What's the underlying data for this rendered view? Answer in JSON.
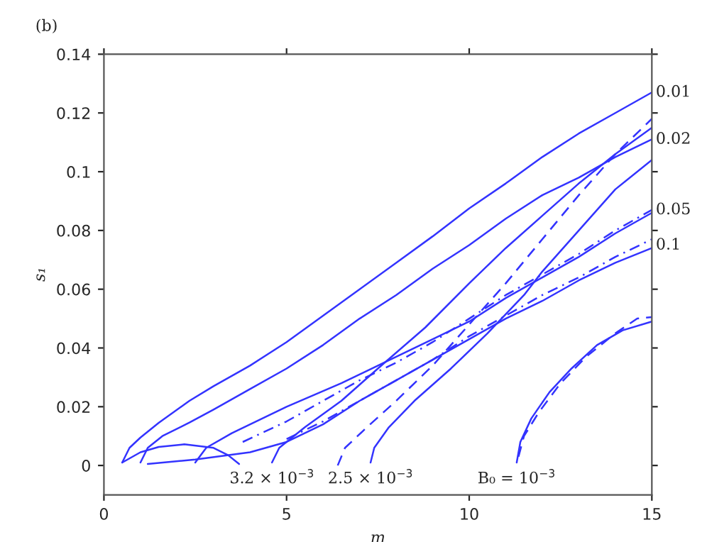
{
  "chart_data": {
    "type": "line",
    "xlabel": "m",
    "ylabel": "s₁",
    "xlim": [
      0,
      15
    ],
    "ylim": [
      -0.01,
      0.14
    ],
    "xticks": [
      0,
      5,
      10,
      15
    ],
    "yticks": [
      0,
      0.02,
      0.04,
      0.06,
      0.08,
      0.1,
      0.12,
      0.14
    ],
    "grid": false,
    "legend": false,
    "marker": "none",
    "annotations": [
      "(b)",
      {
        "text": "3.2 × 10$^{−3}$",
        "x": 4.6,
        "y": 0
      },
      {
        "text": "2.5 × 10$^{−3}$",
        "x": 7.3,
        "y": 0
      },
      {
        "text": "B₀ = 10$^{−3}$",
        "x": 11.3,
        "y": 0
      },
      {
        "text": "0.01",
        "x": 15,
        "y": 0.127
      },
      {
        "text": "0.02",
        "x": 15,
        "y": 0.111
      },
      {
        "text": "0.05",
        "x": 15,
        "y": 0.087
      },
      {
        "text": "0.1",
        "x": 15,
        "y": 0.075
      }
    ],
    "series": [
      {
        "color": "#3333ff",
        "line_style": "solid",
        "x": [
          0.5,
          0.7,
          1,
          1.5,
          2.34,
          3,
          4,
          5,
          6,
          7,
          8,
          9,
          10,
          11,
          12,
          13,
          14,
          15
        ],
        "values": [
          0.001,
          0.006,
          0.0095,
          0.0145,
          0.022,
          0.027,
          0.034,
          0.042,
          0.051,
          0.06,
          0.069,
          0.078,
          0.0875,
          0.096,
          0.105,
          0.113,
          0.12,
          0.127
        ]
      },
      {
        "color": "#3333ff",
        "line_style": "solid",
        "x": [
          1,
          1.2,
          1.6,
          2.34,
          3,
          4,
          5,
          6,
          7,
          8,
          9,
          10,
          11,
          12,
          13,
          14,
          15
        ],
        "values": [
          0.001,
          0.006,
          0.01,
          0.0146,
          0.019,
          0.026,
          0.033,
          0.041,
          0.05,
          0.058,
          0.067,
          0.075,
          0.084,
          0.092,
          0.098,
          0.105,
          0.111
        ]
      },
      {
        "color": "#3333ff",
        "line_style": "solid",
        "x": [
          4.6,
          4.8,
          5.5,
          6.5,
          7.5,
          8.8,
          10,
          11,
          12,
          13,
          14,
          15
        ],
        "values": [
          0.001,
          0.006,
          0.013,
          0.022,
          0.033,
          0.047,
          0.062,
          0.074,
          0.085,
          0.096,
          0.106,
          0.115
        ]
      },
      {
        "color": "#3333ff",
        "line_style": "dashed",
        "x": [
          6.4,
          6.6,
          7.2,
          8,
          9,
          10,
          11,
          12,
          13,
          14,
          15
        ],
        "values": [
          0.0,
          0.006,
          0.013,
          0.022,
          0.034,
          0.048,
          0.062,
          0.077,
          0.092,
          0.106,
          0.118
        ]
      },
      {
        "color": "#3333ff",
        "line_style": "solid",
        "x": [
          7.3,
          7.4,
          7.8,
          8.5,
          9.5,
          10.5,
          11.5,
          12,
          13,
          14,
          15
        ],
        "values": [
          0.001,
          0.006,
          0.013,
          0.022,
          0.033,
          0.045,
          0.058,
          0.066,
          0.08,
          0.094,
          0.104
        ]
      },
      {
        "color": "#3333ff",
        "line_style": "solid",
        "x": [
          0.5,
          1,
          1.5,
          2.2,
          3,
          3.4,
          3.7
        ],
        "values": [
          0.001,
          0.0045,
          0.0063,
          0.0072,
          0.006,
          0.0035,
          0.0005
        ]
      },
      {
        "color": "#3333ff",
        "line_style": "solid",
        "x": [
          1.2,
          2.5,
          4,
          5,
          6,
          7,
          8,
          9,
          10,
          11,
          12,
          13,
          14,
          15
        ],
        "values": [
          0.0005,
          0.002,
          0.0045,
          0.008,
          0.014,
          0.022,
          0.029,
          0.036,
          0.043,
          0.05,
          0.056,
          0.063,
          0.069,
          0.074
        ]
      },
      {
        "color": "#3333ff",
        "line_style": "solid",
        "x": [
          2.5,
          2.8,
          3.5,
          5,
          6.5,
          7.5,
          9,
          10,
          11,
          12,
          13,
          14,
          15
        ],
        "values": [
          0.001,
          0.006,
          0.011,
          0.02,
          0.028,
          0.034,
          0.043,
          0.049,
          0.057,
          0.064,
          0.071,
          0.079,
          0.086
        ]
      },
      {
        "color": "#3333ff",
        "line_style": "dashdot",
        "x": [
          3.8,
          5,
          6,
          7,
          8,
          9,
          10,
          11,
          12,
          13,
          14,
          15
        ],
        "values": [
          0.008,
          0.015,
          0.022,
          0.029,
          0.035,
          0.042,
          0.05,
          0.058,
          0.065,
          0.072,
          0.08,
          0.087
        ]
      },
      {
        "color": "#3333ff",
        "line_style": "dashdot",
        "x": [
          5,
          6,
          7,
          8,
          9,
          10,
          11,
          12,
          13,
          14,
          15
        ],
        "values": [
          0.009,
          0.015,
          0.022,
          0.029,
          0.036,
          0.044,
          0.051,
          0.058,
          0.064,
          0.071,
          0.077
        ]
      },
      {
        "color": "#3333ff",
        "line_style": "solid",
        "x": [
          11.3,
          11.4,
          11.7,
          12.2,
          12.8,
          13.5,
          14.2,
          15
        ],
        "values": [
          0.001,
          0.008,
          0.016,
          0.025,
          0.033,
          0.041,
          0.046,
          0.049
        ]
      },
      {
        "color": "#3333ff",
        "line_style": "dashed",
        "x": [
          11.35,
          11.5,
          11.9,
          12.5,
          13.2,
          14,
          14.6,
          15
        ],
        "values": [
          0.003,
          0.01,
          0.018,
          0.028,
          0.037,
          0.045,
          0.05,
          0.0505
        ]
      }
    ]
  }
}
